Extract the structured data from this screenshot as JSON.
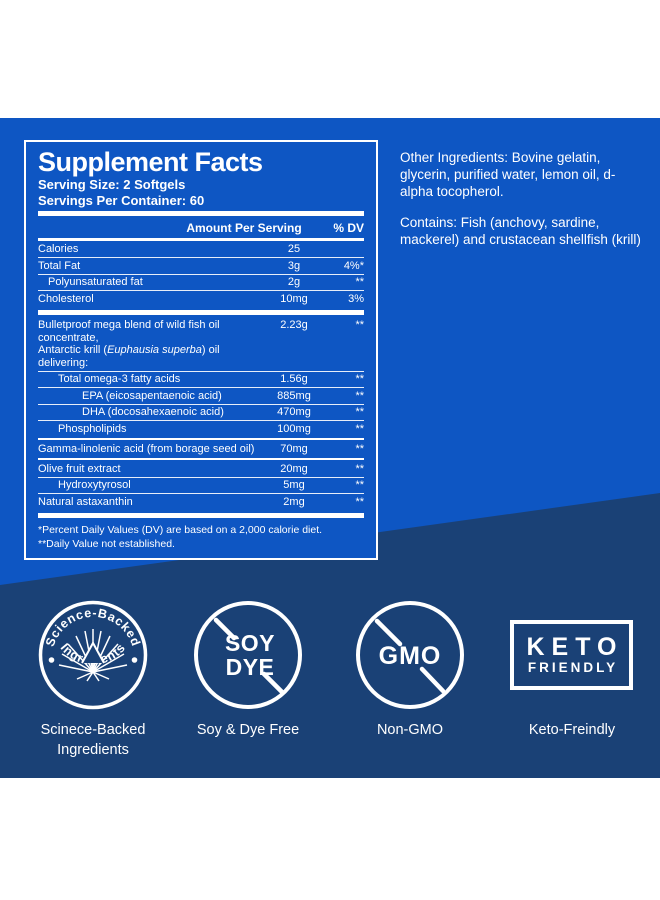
{
  "colors": {
    "bright_blue": "#0E56C3",
    "navy": "#1A4176",
    "white": "#FFFFFF"
  },
  "facts": {
    "title": "Supplement Facts",
    "serving_size": "Serving Size: 2 Softgels",
    "servings_per_container": "Servings Per Container: 60",
    "header": {
      "amount": "Amount Per Serving",
      "dv": "% DV"
    },
    "rows": [
      {
        "lines": [
          [
            {
              "t": "Calories"
            }
          ]
        ],
        "amount": "25",
        "dv": "",
        "indent": 0,
        "sep": "hair"
      },
      {
        "lines": [
          [
            {
              "t": "Total Fat"
            }
          ]
        ],
        "amount": "3g",
        "dv": "4%*",
        "indent": 0,
        "sep": "hair"
      },
      {
        "lines": [
          [
            {
              "t": "Polyunsaturated fat"
            }
          ]
        ],
        "amount": "2g",
        "dv": "**",
        "indent": 10,
        "sep": "hair"
      },
      {
        "lines": [
          [
            {
              "t": "Cholesterol"
            }
          ]
        ],
        "amount": "10mg",
        "dv": "3%",
        "indent": 0,
        "sep": "thick"
      },
      {
        "lines": [
          [
            {
              "t": "Bulletproof mega blend of wild fish oil concentrate,"
            }
          ],
          [
            {
              "t": "Antarctic krill ("
            },
            {
              "t": "Euphausia superba",
              "i": true
            },
            {
              "t": ") oil delivering:"
            }
          ]
        ],
        "amount": "2.23g",
        "dv": "**",
        "indent": 0,
        "sep": "hair"
      },
      {
        "lines": [
          [
            {
              "t": "Total omega-3 fatty acids"
            }
          ]
        ],
        "amount": "1.56g",
        "dv": "**",
        "indent": 20,
        "sep": "hair"
      },
      {
        "lines": [
          [
            {
              "t": "EPA (eicosapentaenoic acid)"
            }
          ]
        ],
        "amount": "885mg",
        "dv": "**",
        "indent": 44,
        "sep": "hair"
      },
      {
        "lines": [
          [
            {
              "t": "DHA (docosahexaenoic acid)"
            }
          ]
        ],
        "amount": "470mg",
        "dv": "**",
        "indent": 44,
        "sep": "hair"
      },
      {
        "lines": [
          [
            {
              "t": "Phospholipids"
            }
          ]
        ],
        "amount": "100mg",
        "dv": "**",
        "indent": 20,
        "sep": "med"
      },
      {
        "lines": [
          [
            {
              "t": "Gamma-linolenic acid (from borage seed oil)"
            }
          ]
        ],
        "amount": "70mg",
        "dv": "**",
        "indent": 0,
        "sep": "med"
      },
      {
        "lines": [
          [
            {
              "t": "Olive fruit extract"
            }
          ]
        ],
        "amount": "20mg",
        "dv": "**",
        "indent": 0,
        "sep": "hair"
      },
      {
        "lines": [
          [
            {
              "t": "Hydroxytyrosol"
            }
          ]
        ],
        "amount": "5mg",
        "dv": "**",
        "indent": 20,
        "sep": "hair"
      },
      {
        "lines": [
          [
            {
              "t": "Natural astaxanthin"
            }
          ]
        ],
        "amount": "2mg",
        "dv": "**",
        "indent": 0,
        "sep": "thick"
      }
    ],
    "footnotes": [
      "*Percent Daily Values (DV) are based on a 2,000 calorie diet.",
      "**Daily Value not established."
    ]
  },
  "side_text": {
    "other_ingredients": "Other Ingredients: Bovine gelatin, glycerin, purified water, lemon oil, d-alpha tocopherol.",
    "contains": "Contains: Fish (anchovy, sardine, mackerel) and crustacean shellfish (krill)"
  },
  "badges": {
    "science_backed": {
      "arc_top": "Science-Backed",
      "arc_bottom": "Ingredients",
      "label_line1": "Scinece-Backed",
      "label_line2": "Ingredients"
    },
    "soy_dye": {
      "line1": "SOY",
      "line2": "DYE",
      "label": "Soy & Dye Free"
    },
    "gmo": {
      "text": "GMO",
      "label": "Non-GMO"
    },
    "keto": {
      "line1": "KETO",
      "line2": "FRIENDLY",
      "label": "Keto-Freindly"
    }
  }
}
